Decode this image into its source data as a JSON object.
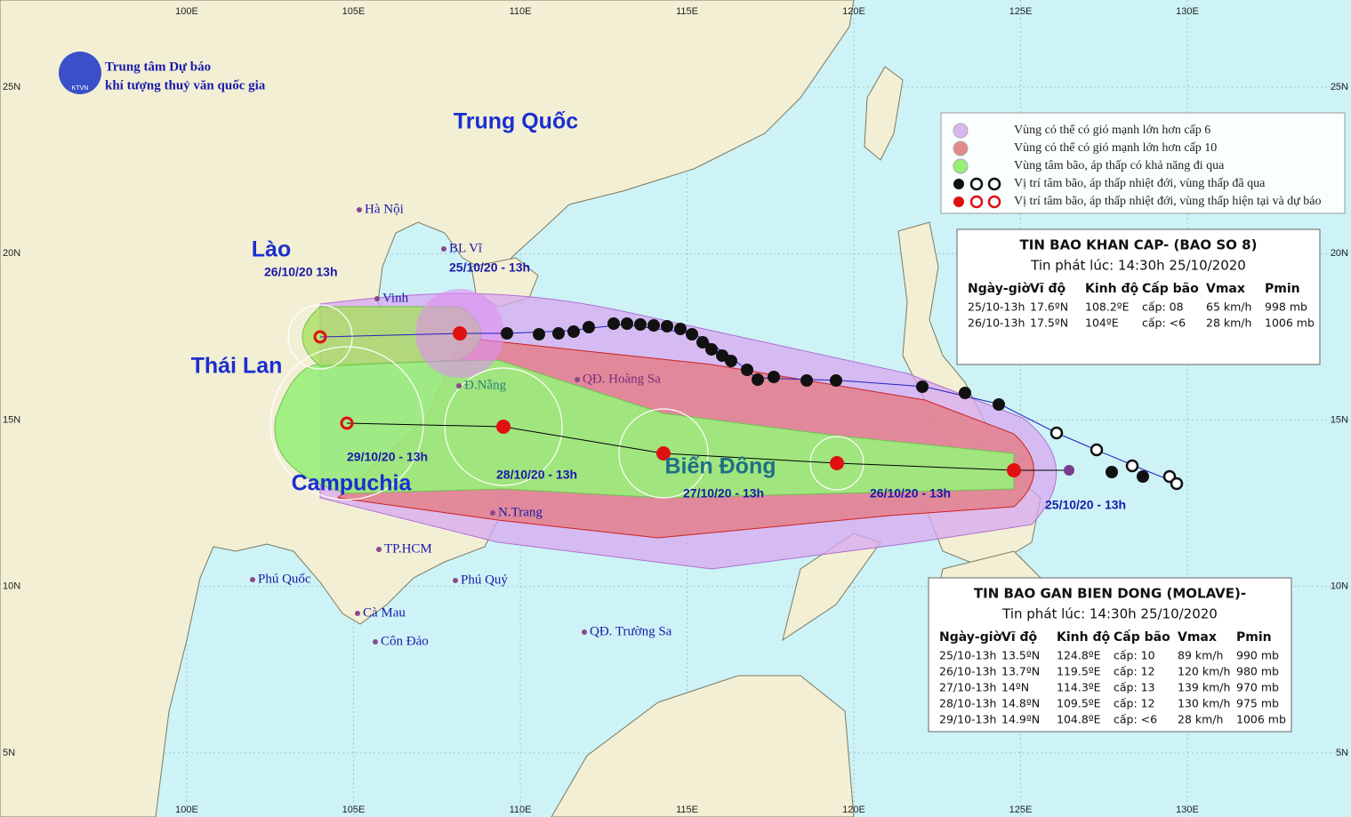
{
  "header": {
    "org_line1": "Trung tâm Dự báo",
    "org_line2": "khí tượng thuỷ văn quốc gia",
    "logo": "KTVN"
  },
  "grid": {
    "lon_labels": [
      "100E",
      "105E",
      "110E",
      "115E",
      "120E",
      "125E",
      "130E"
    ],
    "lat_labels": [
      "25N",
      "20N",
      "15N",
      "10N",
      "5N"
    ]
  },
  "countries": [
    "Trung Quốc",
    "Lào",
    "Thái Lan",
    "Campuchia",
    "Biển Đông"
  ],
  "places": [
    "Hà Nội",
    "BL Vĩ",
    "Vinh",
    "Đ.Nẵng",
    "QĐ. Hoàng Sa",
    "N.Trang",
    "TP.HCM",
    "Phú Quốc",
    "Phú Quý",
    "Cà Mau",
    "Côn Đảo",
    "QĐ. Trường Sa"
  ],
  "track_labels": [
    "26/10/20     13h",
    "25/10/20 - 13h",
    "29/10/20 - 13h",
    "28/10/20 - 13h",
    "27/10/20 - 13h",
    "26/10/20 - 13h",
    "25/10/20 - 13h"
  ],
  "legend": [
    "Vùng có thể có gió mạnh lớn hơn cấp 6",
    "Vùng có thể có gió mạnh lớn hơn cấp 10",
    "Vùng tâm bão, áp thấp có khả năng đi qua",
    "Vị trí tâm bão, áp thấp nhiệt đới, vùng thấp đã qua",
    "Vị trí tâm bão, áp thấp nhiệt đới, vùng thấp hiện tại và dự báo"
  ],
  "bulletin_1": {
    "title": "TIN BAO KHAN CAP- (BAO SO 8)",
    "issued": "Tin phát lúc: 14:30h 25/10/2020",
    "columns": [
      "Ngày-giờ",
      "Vĩ độ",
      "Kinh độ",
      "Cấp bão",
      "Vmax",
      "Pmin"
    ],
    "rows": [
      [
        "25/10-13h",
        "17.6ºN",
        "108.2ºE",
        "cấp: 08",
        "65 km/h",
        "998 mb"
      ],
      [
        "26/10-13h",
        "17.5ºN",
        "104ºE",
        "cấp: <6",
        "28 km/h",
        "1006 mb"
      ]
    ]
  },
  "bulletin_2": {
    "title": "TIN BAO GAN BIEN DONG (MOLAVE)-",
    "issued": "Tin phát lúc: 14:30h 25/10/2020",
    "columns": [
      "Ngày-giờ",
      "Vĩ độ",
      "Kinh độ",
      "Cấp bão",
      "Vmax",
      "Pmin"
    ],
    "rows": [
      [
        "25/10-13h",
        "13.5ºN",
        "124.8ºE",
        "cấp: 10",
        "89 km/h",
        "990 mb"
      ],
      [
        "26/10-13h",
        "13.7ºN",
        "119.5ºE",
        "cấp: 12",
        "120 km/h",
        "980 mb"
      ],
      [
        "27/10-13h",
        "14ºN",
        "114.3ºE",
        "cấp: 13",
        "139 km/h",
        "970 mb"
      ],
      [
        "28/10-13h",
        "14.8ºN",
        "109.5ºE",
        "cấp: 12",
        "130 km/h",
        "975 mb"
      ],
      [
        "29/10-13h",
        "14.9ºN",
        "104.8ºE",
        "cấp: <6",
        "28 km/h",
        "1006 mb"
      ]
    ]
  }
}
